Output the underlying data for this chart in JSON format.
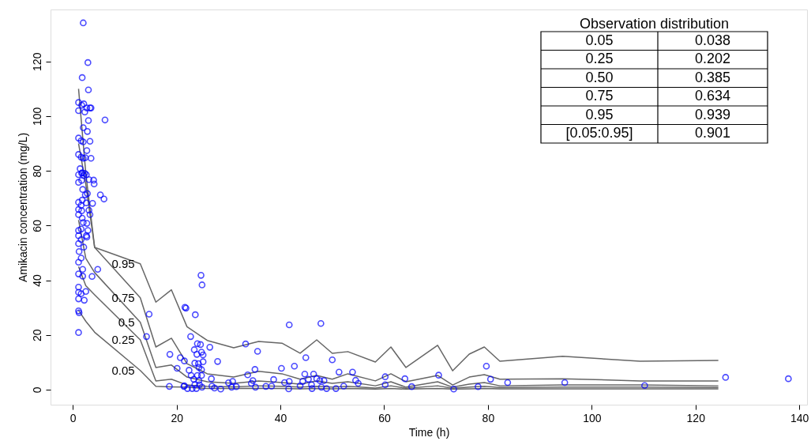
{
  "chart_data": {
    "type": "scatter",
    "xlabel": "Time (h)",
    "ylabel": "Amikacin concentration (mg/L)",
    "xlim": [
      -4.3,
      141.5
    ],
    "ylim": [
      -5.5,
      139
    ],
    "xticks": [
      0,
      20,
      40,
      60,
      80,
      100,
      120,
      140
    ],
    "yticks": [
      0,
      20,
      40,
      60,
      80,
      100,
      120
    ],
    "grid": false,
    "marker": "circle",
    "annotations": [
      "Observation distribution",
      "0.05",
      "0.038",
      "0.25",
      "0.202",
      "0.50",
      "0.385",
      "0.75",
      "0.634",
      "0.95",
      "0.939",
      "[0.05:0.95]",
      "0.901"
    ],
    "series": [
      {
        "type": "line",
        "name": "0.95",
        "color": "#666666",
        "marker": "none",
        "x": [
          1.1,
          2.5,
          4.2,
          13,
          16,
          19,
          22,
          25.9,
          31,
          35.8,
          40.3,
          43.8,
          47,
          50,
          53,
          58.3,
          61.3,
          64.2,
          70.3,
          73.2,
          76.4,
          79.3,
          82.3,
          94.4,
          109.3,
          124.4
        ],
        "values": [
          110,
          79,
          52,
          46,
          32,
          36.5,
          23,
          18,
          15.3,
          17.6,
          17,
          13.3,
          18.2,
          13.3,
          13.9,
          10.1,
          15.6,
          8.1,
          16.2,
          6.9,
          13,
          15.6,
          10.4,
          12.2,
          10.4,
          10.7
        ]
      },
      {
        "type": "line",
        "name": "0.75",
        "color": "#666666",
        "marker": "none",
        "x": [
          1.1,
          2.5,
          4.2,
          13,
          16,
          19,
          22,
          25.9,
          31,
          35.8,
          40.3,
          43.8,
          47,
          50,
          53,
          58.3,
          61.3,
          64.2,
          70.3,
          73.2,
          76.4,
          79.3,
          82.3,
          94.4,
          109.3,
          124.4
        ],
        "values": [
          90,
          75,
          52,
          33.6,
          15.6,
          18.8,
          9.5,
          5.8,
          4.6,
          6.7,
          5.8,
          3.8,
          5.2,
          3.8,
          5.8,
          3.2,
          5.8,
          2.9,
          5.2,
          1.7,
          4.6,
          5.5,
          3.8,
          4,
          3.2,
          3.2
        ]
      },
      {
        "type": "line",
        "name": "0.5",
        "color": "#666666",
        "marker": "none",
        "x": [
          1.1,
          2.5,
          4.2,
          13,
          16,
          19,
          22,
          25.9,
          31,
          35.8,
          40.3,
          43.8,
          47,
          50,
          53,
          58.3,
          61.3,
          64.2,
          70.3,
          73.2,
          76.4,
          79.3,
          82.3,
          94.4,
          109.3,
          124.4
        ],
        "values": [
          62,
          48,
          42.8,
          24.6,
          8.1,
          9,
          4.6,
          2.9,
          2.3,
          3.2,
          2.6,
          2,
          3.2,
          2.3,
          2.9,
          1.4,
          2.9,
          0.9,
          2.9,
          0.9,
          2,
          2.6,
          1.4,
          1.7,
          1.7,
          1.4
        ]
      },
      {
        "type": "line",
        "name": "0.25",
        "color": "#666666",
        "marker": "none",
        "x": [
          1.1,
          2.5,
          4.2,
          13,
          16,
          19,
          22,
          25.9,
          31,
          35.8,
          40.3,
          43.8,
          47,
          50,
          53,
          58.3,
          61.3,
          64.2,
          70.3,
          73.2,
          76.4,
          79.3,
          82.3,
          94.4,
          109.3,
          124.4
        ],
        "values": [
          45,
          38,
          34.7,
          18.2,
          3.2,
          3.8,
          1.7,
          1.2,
          1,
          1.4,
          1.2,
          0.9,
          1.2,
          0.9,
          1.2,
          0.6,
          1.4,
          0.5,
          1.4,
          0.5,
          0.9,
          1.2,
          0.8,
          0.9,
          0.9,
          0.8
        ]
      },
      {
        "type": "line",
        "name": "0.05",
        "color": "#666666",
        "marker": "none",
        "x": [
          1.1,
          2.5,
          4.2,
          13,
          16,
          19,
          22,
          25.9,
          31,
          35.8,
          40.3,
          43.8,
          47,
          50,
          53,
          58.3,
          61.3,
          64.2,
          70.3,
          73.2,
          76.4,
          79.3,
          82.3,
          94.4,
          109.3,
          124.4
        ],
        "values": [
          29,
          25,
          21,
          7,
          1.2,
          1,
          0.9,
          0.4,
          0.4,
          0.5,
          0.4,
          0.3,
          0.4,
          0.3,
          0.4,
          0.2,
          0.4,
          0.2,
          0.4,
          0.2,
          0.3,
          0.4,
          0.3,
          0.3,
          0.3,
          0.3
        ]
      },
      {
        "color": "#0000ff",
        "x": [
          2.0,
          2.9,
          1.8,
          3.0,
          1.1,
          1.1,
          1.7,
          2.1,
          2.3,
          2.7,
          3.3,
          3.5,
          3.0,
          6.2,
          2.0,
          2.8,
          1.1,
          1.6,
          2.0,
          3.3,
          2.7,
          1.1,
          1.6,
          2.0,
          2.4,
          3.5,
          1.4,
          1.8,
          2.1,
          1.1,
          1.7,
          2.3,
          2.6,
          1.1,
          1.7,
          3.1,
          4.0,
          4.1,
          5.3,
          6.0,
          1.9,
          2.4,
          2.8,
          1.8,
          2.6,
          3.8,
          1.1,
          1.6,
          1.1,
          1.7,
          3.1,
          1.1,
          1.8,
          3.3,
          2.0,
          2.7,
          1.1,
          1.6,
          2.9,
          1.1,
          1.6,
          2.6,
          2.7,
          1.1,
          2.1,
          1.2,
          1.6,
          1.1,
          1.9,
          1.1,
          1.9,
          3.7,
          4.8,
          2.5,
          1.1,
          1.1,
          1.6,
          1.1,
          2.2,
          1.1,
          1.2,
          1.1,
          24.7,
          24.9,
          21.6,
          21.8,
          14.7,
          23.6,
          14.2,
          22.7,
          18.7,
          20.7,
          20.1,
          21.5,
          18.6,
          21.4,
          24.0,
          24.6,
          23.4,
          24.8,
          23.9,
          25.1,
          26.4,
          27.9,
          22.4,
          23.5,
          24.2,
          25.1,
          24.3,
          24.8,
          22.8,
          24.0,
          24.8,
          23.3,
          24.3,
          23.5,
          24.4,
          24.9,
          23.8,
          23.0,
          22.1,
          21.5,
          26.7,
          26.8,
          27.3,
          28.5,
          30.0,
          30.8,
          30.6,
          31.5,
          33.3,
          35.6,
          35.1,
          33.7,
          34.7,
          34.4,
          35.2,
          37.2,
          38.3,
          38.7,
          40.2,
          40.8,
          41.7,
          41.6,
          42.7,
          41.7,
          43.8,
          44.3,
          44.7,
          44.9,
          45.4,
          46.4,
          46.0,
          46.1,
          47.0,
          47.8,
          47.6,
          48.4,
          47.9,
          48.9,
          50.0,
          50.7,
          51.3,
          52.2,
          53.9,
          54.5,
          55.0,
          60.2,
          60.2,
          64.0,
          65.3,
          70.5,
          73.4,
          78.1,
          79.7,
          80.5,
          83.8,
          94.8,
          110.2,
          125.8,
          137.9
        ],
        "values": [
          134.1,
          119.6,
          114.1,
          109.6,
          105,
          102,
          104,
          104.5,
          101.5,
          103,
          103,
          103,
          98.4,
          98.6,
          95.8,
          94.4,
          92,
          91,
          90.6,
          90.8,
          87.4,
          86,
          85,
          84.6,
          84.8,
          84.6,
          80.8,
          79.3,
          78.3,
          78.6,
          79.1,
          79.1,
          78.6,
          75.8,
          76.5,
          76.8,
          76.6,
          75.2,
          71.2,
          69.7,
          73.2,
          71.2,
          71.7,
          69.3,
          68.3,
          68.1,
          68.5,
          67.4,
          65.9,
          65.4,
          65.6,
          64,
          62.7,
          64,
          61.1,
          60.8,
          58.2,
          58.7,
          58.2,
          56.3,
          54.9,
          56.3,
          55.8,
          53.4,
          52.1,
          50.5,
          48.1,
          46.6,
          44.0,
          42.3,
          41.5,
          41.4,
          44.0,
          35.9,
          37.5,
          35.6,
          35.1,
          33.2,
          32.7,
          28.8,
          28.1,
          20.9,
          41.8,
          38.3,
          30.1,
          29.8,
          27.6,
          27.4,
          19.4,
          19.4,
          12.9,
          11.7,
          7.8,
          10.5,
          1.2,
          1.2,
          16.8,
          16.5,
          14.6,
          13.7,
          12.9,
          12.7,
          15.5,
          10.3,
          7.1,
          9.7,
          9.5,
          10.2,
          8.1,
          7.3,
          5.2,
          5.2,
          5.2,
          3.8,
          3.3,
          1.8,
          1.8,
          0.9,
          0.4,
          0.4,
          0.4,
          1.4,
          4.0,
          1.3,
          0.6,
          0.2,
          2.5,
          3.0,
          0.9,
          1.1,
          16.7,
          14.0,
          7.4,
          5.4,
          3.3,
          2.3,
          0.9,
          1.2,
          1.3,
          3.7,
          7.8,
          2.6,
          3.0,
          0.3,
          8.6,
          23.7,
          1.4,
          3.0,
          5.7,
          11.7,
          3.8,
          5.7,
          1.8,
          0.4,
          4.0,
          24.2,
          3.3,
          3.3,
          0.9,
          0.4,
          10.9,
          0.4,
          6.4,
          1.3,
          6.4,
          3.4,
          2.3,
          4.7,
          1.8,
          4.0,
          1.1,
          5.3,
          0.2,
          1.1,
          8.6,
          3.8,
          2.6,
          2.6,
          1.5,
          4.5,
          4.0
        ]
      }
    ]
  }
}
